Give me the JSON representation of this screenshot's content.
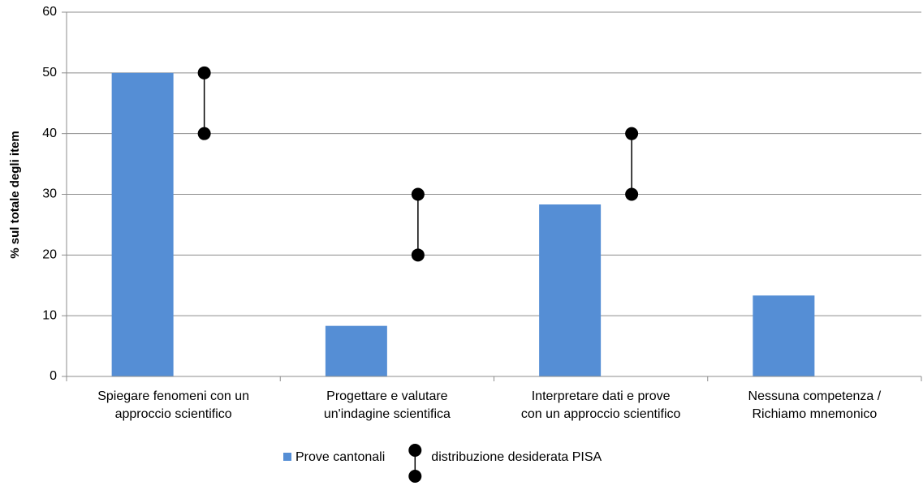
{
  "chart_data": {
    "type": "bar",
    "y_label": "% sul totale degli item",
    "categories": [
      [
        "Spiegare fenomeni con un",
        "approccio scientifico"
      ],
      [
        "Progettare e valutare",
        "un'indagine scientifica"
      ],
      [
        "Interpretare dati e prove",
        "con un approccio scientifico"
      ],
      [
        "Nessuna competenza /",
        "Richiamo mnemonico"
      ]
    ],
    "series": [
      {
        "name": "Prove cantonali",
        "type": "bar",
        "color": "#558ed5",
        "values": [
          50,
          8.33,
          28.33,
          13.33
        ]
      },
      {
        "name": "distribuzione desiderata PISA",
        "type": "range",
        "color": "#000000",
        "low": [
          40,
          20,
          30,
          null
        ],
        "high": [
          50,
          30,
          40,
          null
        ]
      }
    ],
    "ylim": [
      0,
      60
    ],
    "yticks": [
      0,
      10,
      20,
      30,
      40,
      50,
      60
    ],
    "grid": true,
    "legend": "bottom"
  }
}
